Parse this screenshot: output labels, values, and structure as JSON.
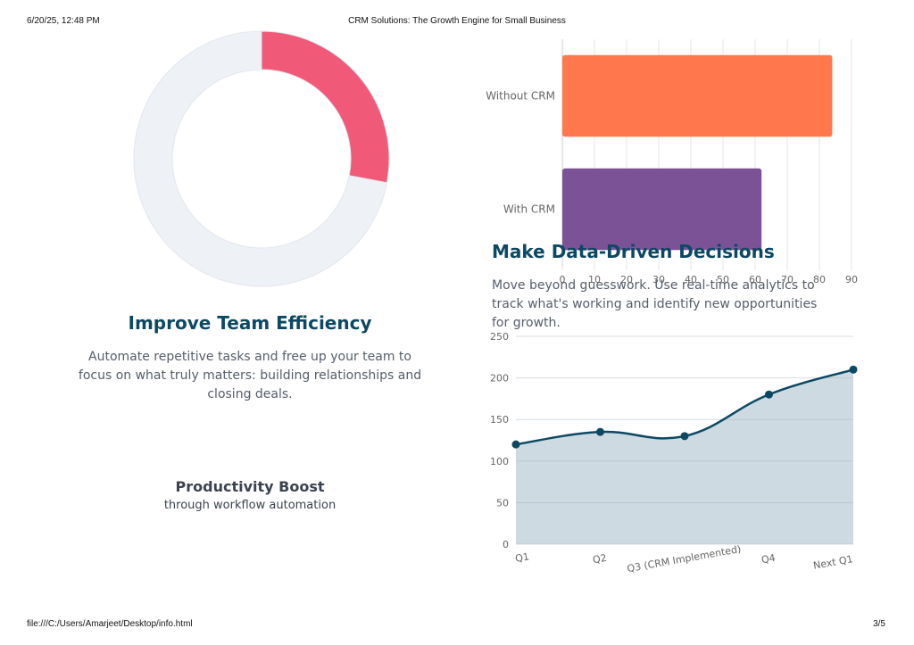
{
  "print_header": {
    "datetime": "6/20/25, 12:48 PM",
    "title": "CRM Solutions: The Growth Engine for Small Business"
  },
  "print_footer": {
    "path": "file:///C:/Users/Amarjeet/Desktop/info.html",
    "page": "3/5"
  },
  "efficiency": {
    "title": "Improve Team Efficiency",
    "text": "Automate repetitive tasks and free up your team to focus on what truly matters: building relationships and closing deals.",
    "stat_title": "Productivity Boost",
    "stat_subtitle": "through workflow automation"
  },
  "data_driven": {
    "title": "Make Data-Driven Decisions",
    "text": "Move beyond guesswork. Use real-time analytics to track what's working and identify new opportunities for growth."
  },
  "colors": {
    "donut_highlight": "#f05a78",
    "donut_track": "#eef1f6",
    "bar_without": "#ff774c",
    "bar_with": "#7b5296",
    "line": "#0d4863",
    "area_fill": "#cbd8e0",
    "heading": "#0d4863"
  },
  "chart_data": [
    {
      "type": "pie",
      "variant": "doughnut",
      "slices": [
        {
          "value": 0.28,
          "color": "#f05a78"
        },
        {
          "value": 0.72,
          "color": "#eef1f6"
        }
      ]
    },
    {
      "type": "bar",
      "orientation": "horizontal",
      "categories": [
        "Without CRM",
        "With CRM"
      ],
      "values": [
        84,
        62
      ],
      "xlim": [
        0,
        90
      ],
      "xticks": [
        0,
        10,
        20,
        30,
        40,
        50,
        60,
        70,
        80,
        90
      ],
      "grid": true
    },
    {
      "type": "area",
      "categories": [
        "Q1",
        "Q2",
        "Q3 (CRM Implemented)",
        "Q4",
        "Next Q1"
      ],
      "values": [
        120,
        135,
        130,
        180,
        210
      ],
      "ylim": [
        0,
        250
      ],
      "yticks": [
        0,
        50,
        100,
        150,
        200,
        250
      ],
      "grid": true
    }
  ]
}
